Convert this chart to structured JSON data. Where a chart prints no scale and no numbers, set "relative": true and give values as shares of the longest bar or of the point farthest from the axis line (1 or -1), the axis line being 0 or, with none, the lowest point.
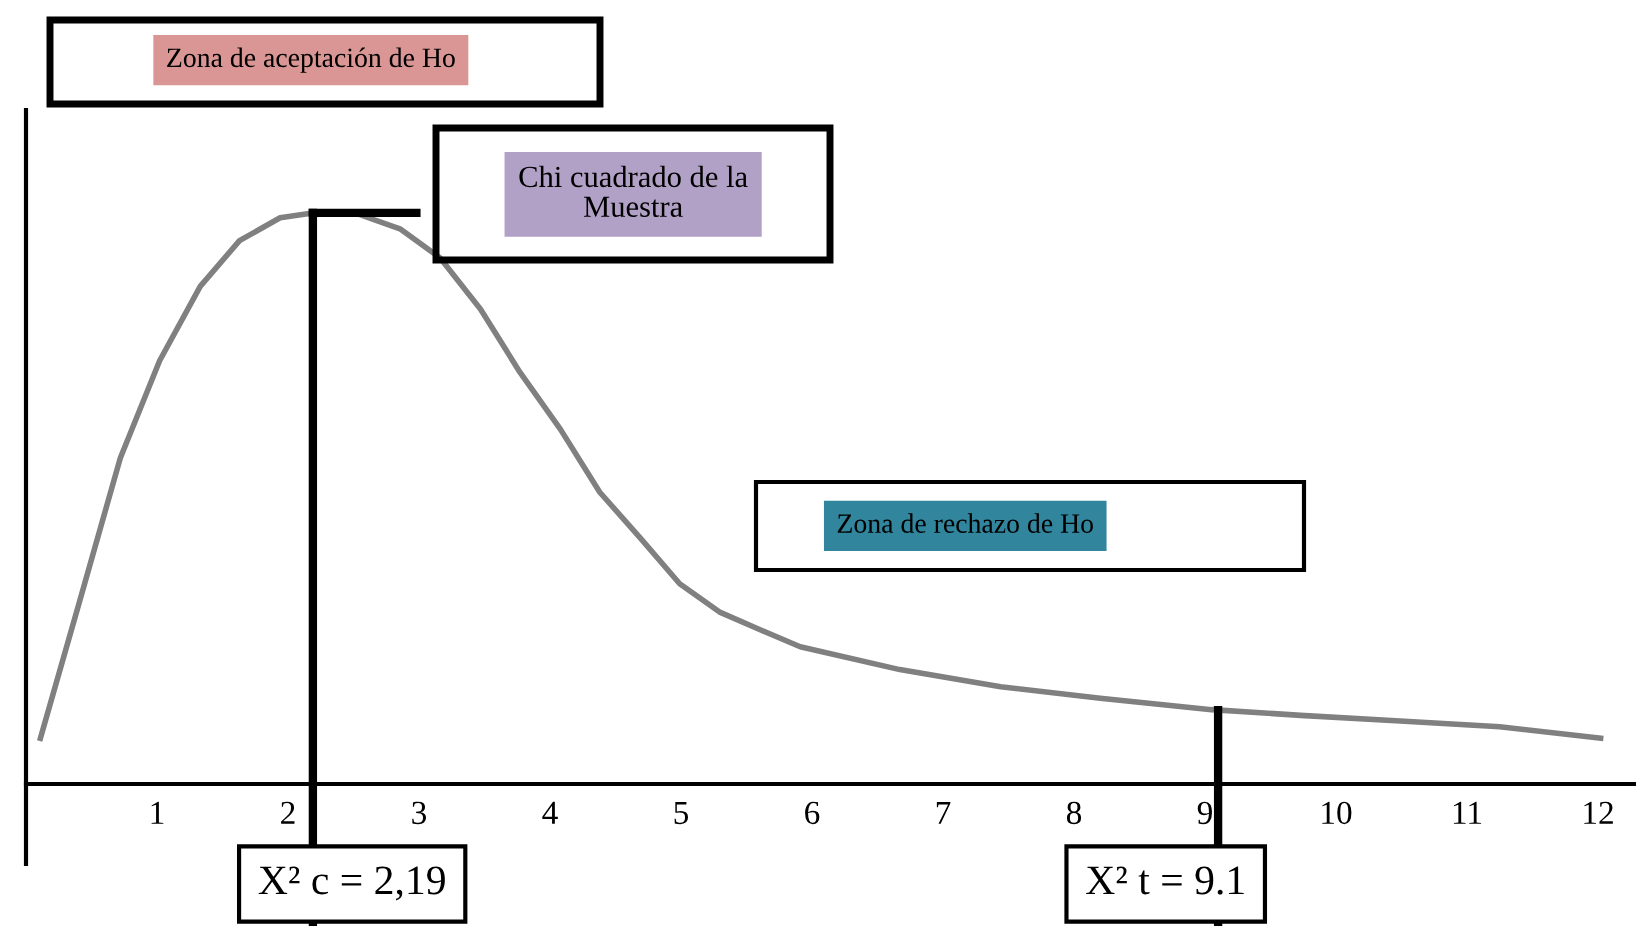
{
  "chart_data": {
    "type": "line",
    "relative": true,
    "xlim": [
      0,
      12.29
    ],
    "xticks": [
      1,
      2,
      3,
      4,
      5,
      6,
      7,
      8,
      9,
      10,
      11,
      12
    ],
    "series": [
      {
        "color": "#808080",
        "x": [
          0.11,
          0.41,
          0.72,
          1.02,
          1.33,
          1.63,
          1.94,
          2.24,
          2.49,
          2.86,
          3.16,
          3.47,
          3.77,
          4.08,
          4.38,
          4.69,
          4.99,
          5.3,
          5.6,
          5.91,
          6.67,
          7.44,
          8.2,
          9.05,
          9.73,
          10.49,
          11.25,
          12.02
        ],
        "values": [
          0.08,
          0.32,
          0.57,
          0.74,
          0.87,
          0.95,
          0.99,
          1.0,
          1.0,
          0.97,
          0.92,
          0.83,
          0.72,
          0.62,
          0.51,
          0.43,
          0.35,
          0.3,
          0.27,
          0.24,
          0.2,
          0.17,
          0.15,
          0.13,
          0.12,
          0.11,
          0.1,
          0.08
        ]
      }
    ],
    "ref_lines": [
      {
        "axis": "x",
        "value": 2.19,
        "label": "X² c = 2,19"
      },
      {
        "axis": "x",
        "value": 9.1,
        "label": "X² t = 9.1"
      }
    ],
    "annotations": [
      "Zona de aceptación de Ho",
      "Chi cuadrado de la\nMuestra",
      "Zona de rechazo de Ho"
    ],
    "grid": false,
    "legend": false,
    "marker": "none",
    "line_style": "solid"
  }
}
